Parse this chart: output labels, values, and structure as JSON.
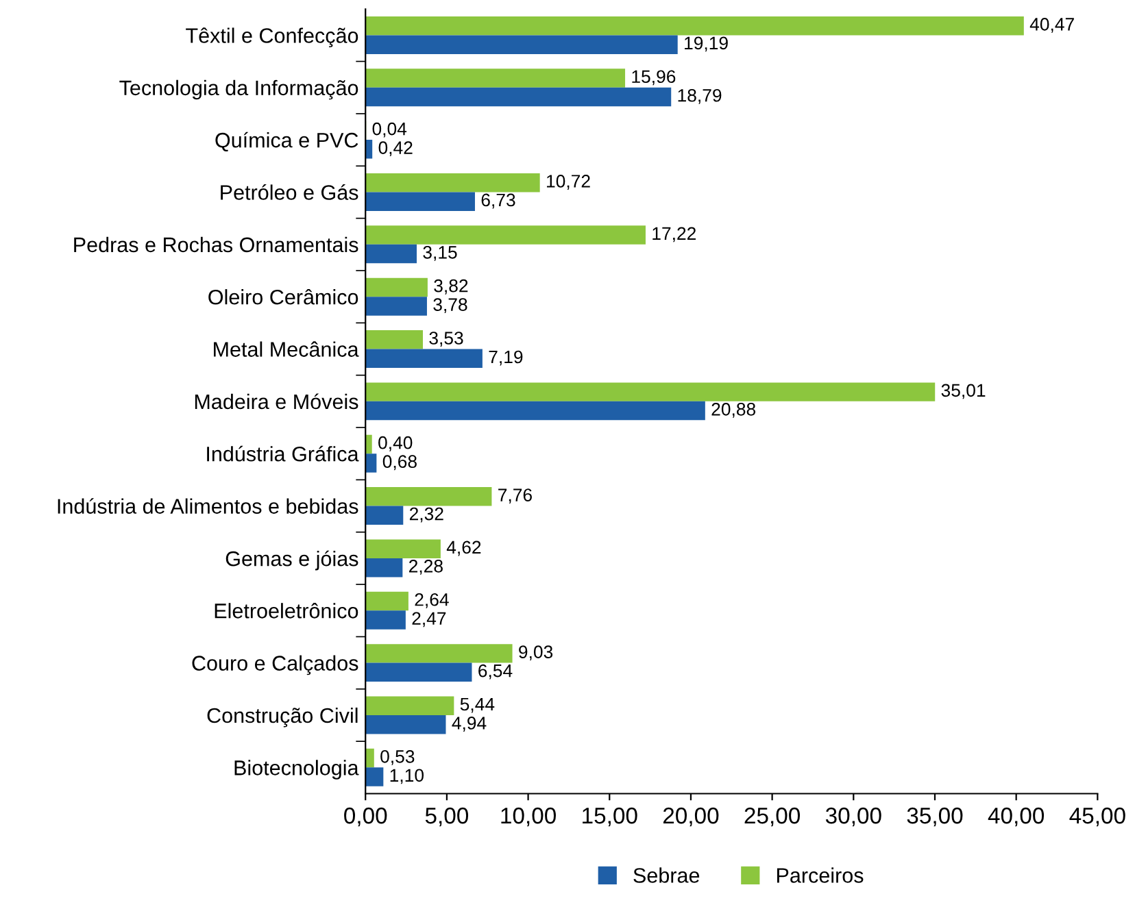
{
  "chart_data": {
    "type": "bar",
    "orientation": "horizontal",
    "categories": [
      "Têxtil e Confecção",
      "Tecnologia da Informação",
      "Química e PVC",
      "Petróleo e Gás",
      "Pedras e Rochas Ornamentais",
      "Oleiro Cerâmico",
      "Metal Mecânica",
      "Madeira e Móveis",
      "Indústria Gráfica",
      "Indústria de Alimentos e bebidas",
      "Gemas e jóias",
      "Eletroeletrônico",
      "Couro e Calçados",
      "Construção Civil",
      "Biotecnologia"
    ],
    "series": [
      {
        "name": "Parceiros",
        "color": "#8cc63e",
        "values": [
          40.47,
          15.96,
          0.04,
          10.72,
          17.22,
          3.82,
          3.53,
          35.01,
          0.4,
          7.76,
          4.62,
          2.64,
          9.03,
          5.44,
          0.53
        ],
        "value_labels": [
          "40,47",
          "15,96",
          "0,04",
          "10,72",
          "17,22",
          "3,82",
          "3,53",
          "35,01",
          "0,40",
          "7,76",
          "4,62",
          "2,64",
          "9,03",
          "5,44",
          "0,53"
        ]
      },
      {
        "name": "Sebrae",
        "color": "#1f5fa7",
        "values": [
          19.19,
          18.79,
          0.42,
          6.73,
          3.15,
          3.78,
          7.19,
          20.88,
          0.68,
          2.32,
          2.28,
          2.47,
          6.54,
          4.94,
          1.1
        ],
        "value_labels": [
          "19,19",
          "18,79",
          "0,42",
          "6,73",
          "3,15",
          "3,78",
          "7,19",
          "20,88",
          "0,68",
          "2,32",
          "2,28",
          "2,47",
          "6,54",
          "4,94",
          "1,10"
        ]
      }
    ],
    "xlim": [
      0,
      45
    ],
    "xticks": [
      {
        "value": 0,
        "label": "0,00"
      },
      {
        "value": 5,
        "label": "5,00"
      },
      {
        "value": 10,
        "label": "10,00"
      },
      {
        "value": 15,
        "label": "15,00"
      },
      {
        "value": 20,
        "label": "20,00"
      },
      {
        "value": 25,
        "label": "25,00"
      },
      {
        "value": 30,
        "label": "30,00"
      },
      {
        "value": 35,
        "label": "35,00"
      },
      {
        "value": 40,
        "label": "40,00"
      },
      {
        "value": 45,
        "label": "45,00"
      }
    ],
    "grid": false,
    "legend": "bottom"
  }
}
